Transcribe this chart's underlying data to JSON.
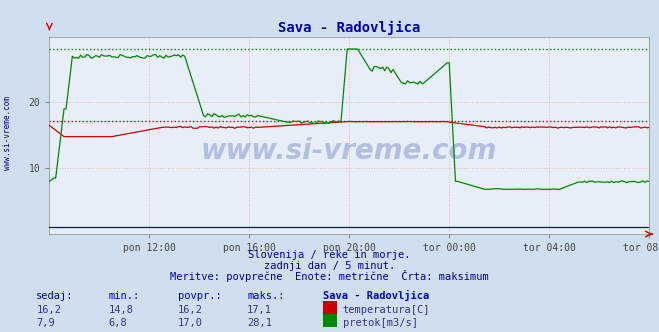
{
  "title": "Sava - Radovljica",
  "bg_color": "#d0dff0",
  "plot_bg_color": "#e8eef8",
  "text_color": "#0000aa",
  "temp_color": "#cc0000",
  "flow_color": "#008800",
  "height_color": "#0000cc",
  "max_temp": 17.1,
  "max_flow": 28.1,
  "ylim": [
    0,
    30
  ],
  "footnote1": "Slovenija / reke in morje.",
  "footnote2": "zadnji dan / 5 minut.",
  "footnote3": "Meritve: povprečne  Enote: metrične  Črta: maksimum",
  "table_header": [
    "sedaj:",
    "min.:",
    "povpr.:",
    "maks.:",
    "Sava - Radovljica"
  ],
  "table_row1": [
    "16,2",
    "14,8",
    "16,2",
    "17,1"
  ],
  "table_row2": [
    "7,9",
    "6,8",
    "17,0",
    "28,1"
  ],
  "label_temp": "temperatura[C]",
  "label_flow": "pretok[m3/s]",
  "xtick_labels": [
    "pon 12:00",
    "pon 16:00",
    "pon 20:00",
    "tor 00:00",
    "tor 04:00",
    "tor 08:00"
  ],
  "xtick_positions": [
    48,
    96,
    144,
    192,
    240,
    288
  ],
  "n_points": 289,
  "watermark": "www.si-vreme.com",
  "sidebar_text": "www.si-vreme.com"
}
